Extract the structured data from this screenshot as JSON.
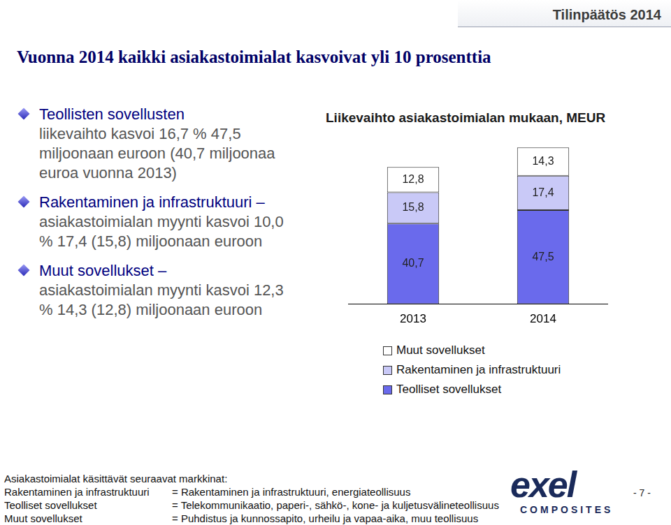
{
  "chart_data": {
    "type": "bar",
    "title": "Liikevaihto asiakastoimialan mukaan, MEUR",
    "categories": [
      "2013",
      "2014"
    ],
    "series": [
      {
        "name": "Teolliset sovellukset",
        "color": "#6a6aec",
        "values": [
          40.7,
          47.5
        ],
        "value_labels": [
          "40,7",
          "47,5"
        ]
      },
      {
        "name": "Rakentaminen ja infrastruktuuri",
        "color": "#c9c9f7",
        "values": [
          15.8,
          17.4
        ],
        "value_labels": [
          "15,8",
          "17,4"
        ]
      },
      {
        "name": "Muut sovellukset",
        "color": "#ffffff",
        "values": [
          12.8,
          14.3
        ],
        "value_labels": [
          "12,8",
          "14,3"
        ]
      }
    ],
    "stacked": true,
    "data_labels": true,
    "grid": false,
    "legend": "bottom",
    "tick_labels": "x",
    "ylim": [
      0,
      80
    ],
    "yticks": [
      0,
      80
    ]
  },
  "page": {
    "header": "Tilinpäätös 2014",
    "title": "Vuonna 2014 kaikki asiakastoimialat kasvoivat yli 10 prosenttia",
    "bullets": [
      {
        "head": "Teollisten sovellusten",
        "text": "liikevaihto kasvoi 16,7 % 47,5 miljoonaan euroon (40,7 miljoonaa euroa vuonna 2013)"
      },
      {
        "head": "Rakentaminen ja infrastruktuuri –",
        "text": "asiakastoimialan myynti kasvoi 10,0 % 17,4 (15,8) miljoonaan euroon"
      },
      {
        "head": "Muut sovellukset –",
        "text": "asiakastoimialan myynti kasvoi 12,3 % 14,3 (12,8) miljoonaan euroon"
      }
    ],
    "footer": {
      "heading": "Asiakastoimialat käsittävät seuraavat markkinat:",
      "rows": [
        [
          "Rakentaminen ja infrastruktuuri",
          "= Rakentaminen ja infrastruktuuri, energiateollisuus"
        ],
        [
          "Teolliset sovellukset",
          "= Telekommunikaatio, paperi-, sähkö-, kone- ja kuljetusvälineteollisuus"
        ],
        [
          "Muut sovellukset",
          "= Puhdistus ja kunnossapito, urheilu ja vapaa-aika, muu teollisuus"
        ]
      ]
    },
    "logo": {
      "name": "exel",
      "sub": "COMPOSITES"
    },
    "page_number": "- 7 -"
  }
}
